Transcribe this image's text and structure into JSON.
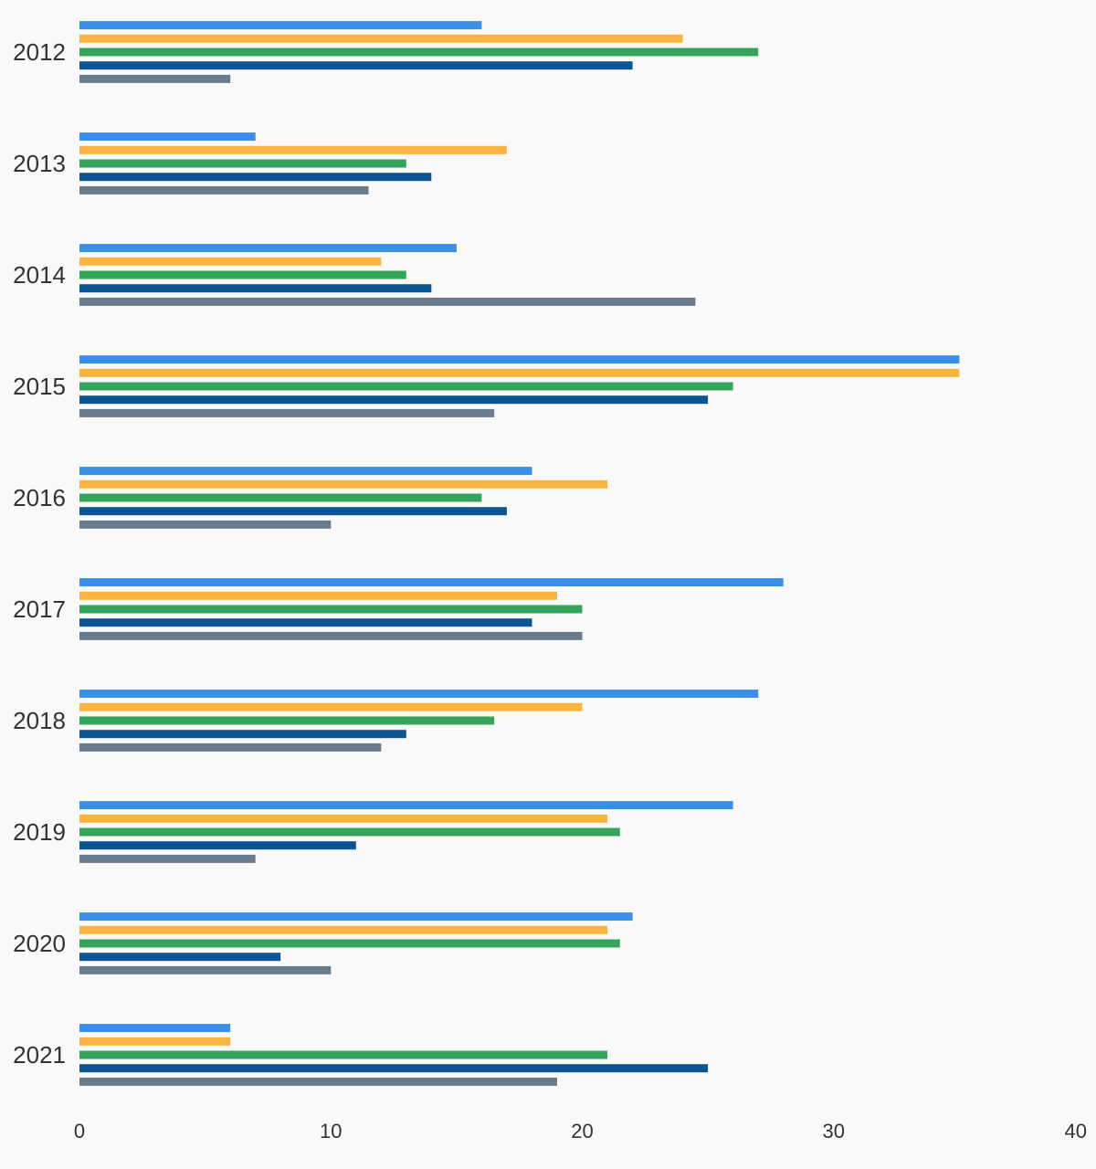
{
  "chart_data": {
    "type": "bar",
    "orientation": "horizontal",
    "title": "",
    "xlabel": "",
    "ylabel": "",
    "xlim": [
      0,
      40
    ],
    "x_ticks": [
      "0",
      "10",
      "20",
      "30",
      "40"
    ],
    "grid": false,
    "legend": "none",
    "categories": [
      "2012",
      "2013",
      "2014",
      "2015",
      "2016",
      "2017",
      "2018",
      "2019",
      "2020",
      "2021"
    ],
    "series": [
      {
        "color": "#3b8fe6",
        "values": [
          16,
          7,
          15,
          35,
          18,
          28,
          27,
          26,
          22,
          6
        ]
      },
      {
        "color": "#fbb53e",
        "values": [
          24,
          17,
          12,
          35,
          21,
          19,
          20,
          21,
          21,
          6
        ]
      },
      {
        "color": "#36a45a",
        "values": [
          27,
          13,
          13,
          26,
          16,
          20,
          16.5,
          21.5,
          21.5,
          21
        ]
      },
      {
        "color": "#0c5593",
        "values": [
          22,
          14,
          14,
          25,
          17,
          18,
          13,
          11,
          8,
          25
        ]
      },
      {
        "color": "#6b7b8e",
        "values": [
          6,
          11.5,
          24.5,
          16.5,
          10,
          20,
          12,
          7,
          10,
          19
        ]
      }
    ]
  }
}
